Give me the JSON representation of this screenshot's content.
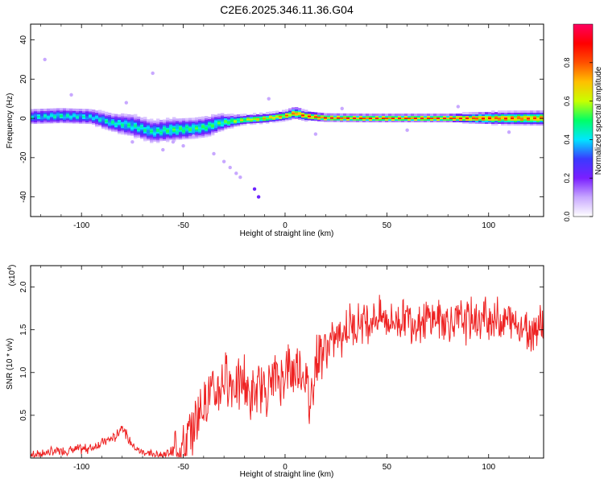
{
  "title": "C2E6.2025.346.11.36.G04",
  "chart_data": [
    {
      "type": "heatmap",
      "xlabel": "Height of straight line (km)",
      "ylabel": "Frequency (Hz)",
      "xlim": [
        -125,
        127
      ],
      "ylim": [
        -50,
        48
      ],
      "xticks": [
        -100,
        -50,
        0,
        50,
        100
      ],
      "xtick_labels": [
        "-100",
        "-50",
        "0",
        "50",
        "100"
      ],
      "yticks": [
        -40,
        -20,
        0,
        20,
        40
      ],
      "ytick_labels": [
        "-40",
        "-20",
        "0",
        "20",
        "40"
      ],
      "colorbar": {
        "label": "Normalized spectral amplitude",
        "range": [
          0,
          1
        ],
        "ticks": [
          0,
          0.2,
          0.4,
          0.6,
          0.8
        ],
        "tick_labels": [
          "0.0",
          "0.2",
          "0.4",
          "0.6",
          "0.8"
        ],
        "colors": [
          "#ffffff",
          "#c8a8ff",
          "#7a1fff",
          "#3a3aff",
          "#00e6ff",
          "#00ff66",
          "#c8ff00",
          "#ffc000",
          "#ff5000",
          "#ff0000",
          "#ff0060"
        ]
      },
      "ridge": {
        "x": [
          -125,
          -110,
          -95,
          -85,
          -75,
          -65,
          -55,
          -45,
          -38,
          -32,
          -28,
          -20,
          -10,
          0,
          5,
          10,
          20,
          40,
          60,
          80,
          100,
          127
        ],
        "y": [
          1,
          1.5,
          1,
          -2,
          -3.5,
          -6.5,
          -5.5,
          -5,
          -4,
          -2,
          -1.5,
          -0.5,
          0.2,
          1.5,
          3,
          1.5,
          0.5,
          0.3,
          0.3,
          0.3,
          0.3,
          0.3
        ],
        "amplitude": [
          0.45,
          0.5,
          0.45,
          0.5,
          0.5,
          0.5,
          0.55,
          0.55,
          0.55,
          0.55,
          0.6,
          0.7,
          0.75,
          0.8,
          0.85,
          0.9,
          0.95,
          0.95,
          0.95,
          0.95,
          0.9,
          0.85
        ],
        "width_hz": [
          3.5,
          3.5,
          3.5,
          4,
          5,
          5,
          5,
          4.5,
          4.5,
          4,
          3,
          2,
          2,
          2,
          2.5,
          2,
          1.5,
          1.5,
          1.5,
          1.5,
          2.5,
          3
        ]
      },
      "speckles": [
        {
          "x": -118,
          "y": 30
        },
        {
          "x": -105,
          "y": 12
        },
        {
          "x": -78,
          "y": 8
        },
        {
          "x": -75,
          "y": -12
        },
        {
          "x": -65,
          "y": 23
        },
        {
          "x": -60,
          "y": -16
        },
        {
          "x": -55,
          "y": -12
        },
        {
          "x": -50,
          "y": -14
        },
        {
          "x": -45,
          "y": -9
        },
        {
          "x": -35,
          "y": -18
        },
        {
          "x": -30,
          "y": -22
        },
        {
          "x": -27,
          "y": -25
        },
        {
          "x": -24,
          "y": -28
        },
        {
          "x": -22,
          "y": -30
        },
        {
          "x": -15,
          "y": -36
        },
        {
          "x": -13,
          "y": -40
        },
        {
          "x": -8,
          "y": 10
        },
        {
          "x": 15,
          "y": -8
        },
        {
          "x": 28,
          "y": 5
        },
        {
          "x": 60,
          "y": -6
        },
        {
          "x": 85,
          "y": 6
        },
        {
          "x": 110,
          "y": -7
        }
      ]
    },
    {
      "type": "line",
      "xlabel": "Height of straight line (km)",
      "ylabel": "SNR (10 * v/v)",
      "y_multiplier": "(x10",
      "y_multiplier_exp": "4",
      "y_multiplier_close": ")",
      "xlim": [
        -125,
        127
      ],
      "ylim": [
        0,
        2.25
      ],
      "xticks": [
        -100,
        -50,
        0,
        50,
        100
      ],
      "xtick_labels": [
        "-100",
        "-50",
        "0",
        "50",
        "100"
      ],
      "yticks": [
        0.5,
        1,
        1.5,
        2
      ],
      "ytick_labels": [
        "0.5",
        "1.0",
        "1.5",
        "2.0"
      ],
      "line_color": "#ee2222",
      "series": [
        {
          "x": [
            -125,
            -115,
            -105,
            -95,
            -88,
            -83,
            -80,
            -77,
            -73,
            -67,
            -60,
            -55,
            -50,
            -46,
            -43,
            -40,
            -37,
            -35,
            -32,
            -29,
            -26,
            -23,
            -20,
            -17,
            -14,
            -11,
            -8,
            -5,
            -2,
            0,
            3,
            6,
            10,
            12,
            15,
            18,
            20,
            25,
            30,
            35,
            40,
            45,
            50,
            55,
            60,
            65,
            70,
            75,
            80,
            85,
            90,
            95,
            100,
            105,
            110,
            115,
            120,
            127
          ],
          "values": [
            0.05,
            0.07,
            0.09,
            0.12,
            0.2,
            0.25,
            0.38,
            0.22,
            0.1,
            0.05,
            0.04,
            0.08,
            0.15,
            0.3,
            0.5,
            0.65,
            0.8,
            0.7,
            0.85,
            0.95,
            0.9,
            0.8,
            0.9,
            0.7,
            0.75,
            0.8,
            0.85,
            0.95,
            0.9,
            1.05,
            1.0,
            1.1,
            0.95,
            0.6,
            1.15,
            1.25,
            1.3,
            1.4,
            1.5,
            1.58,
            1.62,
            1.65,
            1.62,
            1.6,
            1.65,
            1.6,
            1.62,
            1.65,
            1.6,
            1.58,
            1.62,
            1.6,
            1.65,
            1.62,
            1.6,
            1.55,
            1.5,
            1.6
          ]
        }
      ]
    }
  ]
}
